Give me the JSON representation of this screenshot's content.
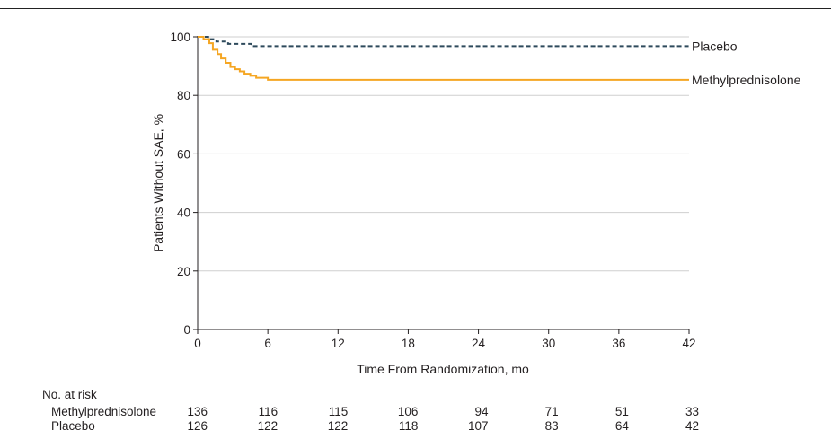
{
  "chart_data": {
    "type": "line",
    "title": "",
    "xlabel": "Time From Randomization, mo",
    "ylabel": "Patients Without SAE, %",
    "xlim": [
      0,
      42
    ],
    "ylim": [
      0,
      100
    ],
    "xticks": [
      0,
      6,
      12,
      18,
      24,
      30,
      36,
      42
    ],
    "yticks": [
      0,
      20,
      40,
      60,
      80,
      100
    ],
    "grid": true,
    "series": [
      {
        "name": "Placebo",
        "style": "dashed",
        "color": "#2e4a5c",
        "x": [
          0,
          0.9,
          1.6,
          2.6,
          4.6,
          42
        ],
        "y": [
          100,
          99.2,
          98.4,
          97.6,
          96.8,
          96.8
        ]
      },
      {
        "name": "Methylprednisolone",
        "style": "solid",
        "color": "#f5a623",
        "x": [
          0,
          0.5,
          1.0,
          1.3,
          1.7,
          2.0,
          2.4,
          2.8,
          3.2,
          3.6,
          4.0,
          4.5,
          5.0,
          6.0,
          42
        ],
        "y": [
          100,
          99.2,
          97.8,
          95.6,
          94.1,
          92.6,
          91.1,
          89.7,
          88.9,
          88.2,
          87.4,
          86.7,
          86.0,
          85.3,
          85.3
        ]
      }
    ]
  },
  "at_risk": {
    "title": "No. at risk",
    "times": [
      0,
      6,
      12,
      18,
      24,
      30,
      36,
      42
    ],
    "rows": [
      {
        "label": "Methylprednisolone",
        "values": [
          "136",
          "116",
          "115",
          "106",
          "94",
          "71",
          "51",
          "33"
        ]
      },
      {
        "label": "Placebo",
        "values": [
          "126",
          "122",
          "122",
          "118",
          "107",
          "83",
          "64",
          "42"
        ]
      }
    ]
  }
}
